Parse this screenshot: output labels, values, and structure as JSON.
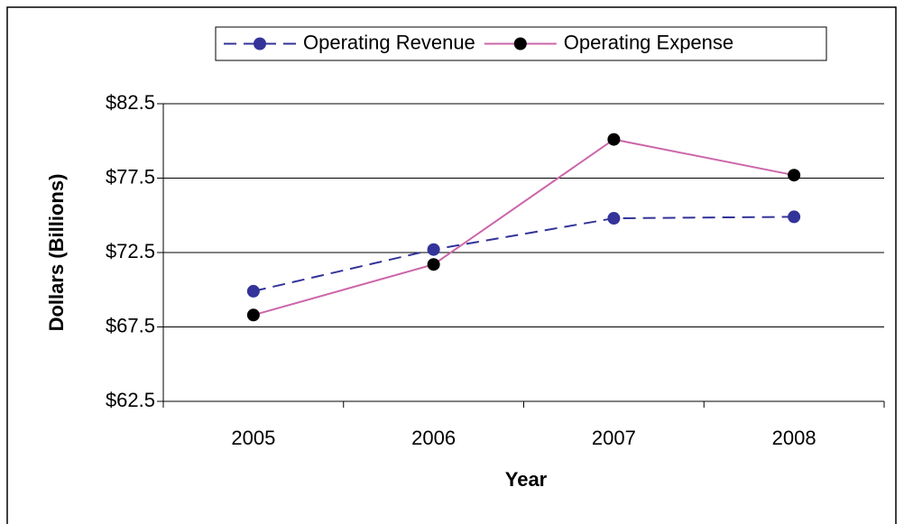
{
  "chart_data": {
    "type": "line",
    "categories": [
      "2005",
      "2006",
      "2007",
      "2008"
    ],
    "series": [
      {
        "name": "Operating Revenue",
        "color": "#333399",
        "marker_color": "#333399",
        "dashed": true,
        "values": [
          69.9,
          72.7,
          74.8,
          74.9
        ]
      },
      {
        "name": "Operating Expense",
        "color": "#cc66aa",
        "marker_color": "#000000",
        "dashed": false,
        "values": [
          68.3,
          71.7,
          80.1,
          77.7
        ]
      }
    ],
    "x_label": "Year",
    "y_label": "Dollars (Billions)",
    "ylim": [
      62.5,
      82.5
    ],
    "yticks": [
      {
        "value": 62.5,
        "label": "$62.5"
      },
      {
        "value": 67.5,
        "label": "$67.5"
      },
      {
        "value": 72.5,
        "label": "$72.5"
      },
      {
        "value": 77.5,
        "label": "$77.5"
      },
      {
        "value": 82.5,
        "label": "$82.5"
      }
    ],
    "grid": true,
    "legend": "top"
  }
}
